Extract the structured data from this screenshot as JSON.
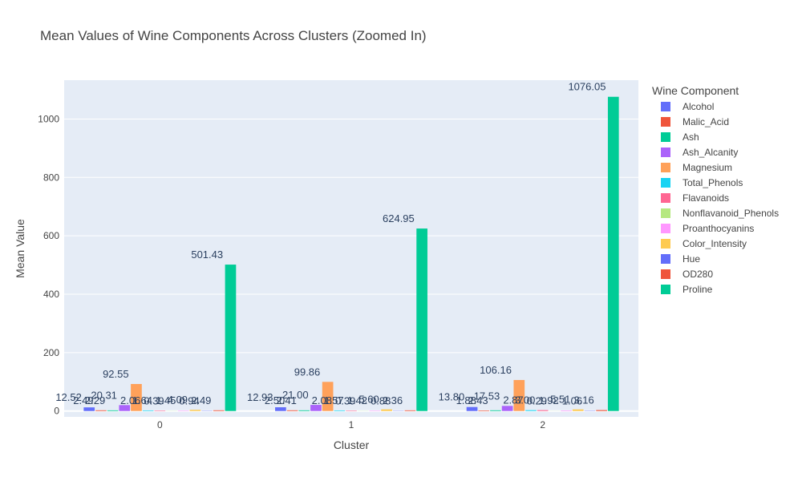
{
  "chart_data": {
    "type": "bar",
    "title": "Mean Values of Wine Components Across Clusters (Zoomed In)",
    "xlabel": "Cluster",
    "ylabel": "Mean Value",
    "legend_title": "Wine Component",
    "legend_position": "right",
    "grid": true,
    "ylim": [
      -20,
      1133
    ],
    "yticks": [
      0,
      200,
      400,
      600,
      800,
      1000
    ],
    "categories": [
      "0",
      "1",
      "2"
    ],
    "series": [
      {
        "name": "Alcohol",
        "color": "#636efa",
        "values": [
          12.52,
          12.93,
          13.8
        ]
      },
      {
        "name": "Malic_Acid",
        "color": "#EF553B",
        "values": [
          2.49,
          2.5,
          1.88
        ]
      },
      {
        "name": "Ash",
        "color": "#00cc96",
        "values": [
          2.29,
          2.41,
          2.43
        ]
      },
      {
        "name": "Ash_Alcanity",
        "color": "#ab63fa",
        "values": [
          20.31,
          21.0,
          17.53
        ]
      },
      {
        "name": "Magnesium",
        "color": "#FFA15A",
        "values": [
          92.55,
          99.86,
          106.16
        ]
      },
      {
        "name": "Total_Phenols",
        "color": "#19d3f3",
        "values": [
          2.06,
          2.08,
          2.87
        ]
      },
      {
        "name": "Flavanoids",
        "color": "#FF6692",
        "values": [
          1.64,
          1.57,
          3.0
        ]
      },
      {
        "name": "Nonflavanoid_Phenols",
        "color": "#B6E880",
        "values": [
          0.39,
          0.39,
          0.29
        ]
      },
      {
        "name": "Proanthocyanins",
        "color": "#FF97FF",
        "values": [
          1.45,
          1.42,
          1.92
        ]
      },
      {
        "name": "Color_Intensity",
        "color": "#FECB52",
        "values": [
          4.09,
          5.6,
          5.51
        ]
      },
      {
        "name": "Hue",
        "color": "#636efa",
        "values": [
          0.94,
          0.88,
          1.06
        ]
      },
      {
        "name": "OD280",
        "color": "#EF553B",
        "values": [
          2.49,
          2.36,
          3.16
        ]
      },
      {
        "name": "Proline",
        "color": "#00cc96",
        "values": [
          501.43,
          624.95,
          1076.05
        ]
      }
    ]
  }
}
